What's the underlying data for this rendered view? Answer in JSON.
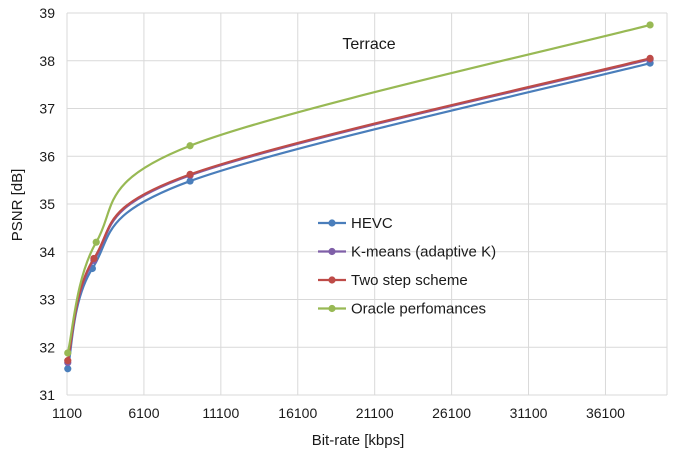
{
  "chart_data": {
    "type": "line",
    "title": "Terrace",
    "xlabel": "Bit-rate [kbps]",
    "ylabel": "PSNR [dB]",
    "xlim": [
      1100,
      40100
    ],
    "ylim": [
      31,
      39
    ],
    "x_ticks": [
      1100,
      6100,
      11100,
      16100,
      21100,
      26100,
      31100,
      36100
    ],
    "y_ticks": [
      31,
      32,
      33,
      34,
      35,
      36,
      37,
      38,
      39
    ],
    "grid": "vertical and horizontal",
    "legend_position": "center",
    "series": [
      {
        "name": "HEVC",
        "color": "#4a7ebb",
        "x": [
          1150,
          2750,
          9100,
          39000
        ],
        "y": [
          31.55,
          33.65,
          35.48,
          37.95
        ]
      },
      {
        "name": "K-means (adaptive K)",
        "color": "#7f5fa8",
        "x": [
          1150,
          2850,
          9100,
          39000
        ],
        "y": [
          31.68,
          33.82,
          35.6,
          38.03
        ]
      },
      {
        "name": "Two step scheme",
        "color": "#be4b48",
        "x": [
          1150,
          2850,
          9100,
          39000
        ],
        "y": [
          31.72,
          33.86,
          35.62,
          38.05
        ]
      },
      {
        "name": "Oracle perfomances",
        "color": "#98b954",
        "x": [
          1150,
          3000,
          9100,
          39000
        ],
        "y": [
          31.88,
          34.2,
          36.22,
          38.75
        ]
      }
    ]
  }
}
